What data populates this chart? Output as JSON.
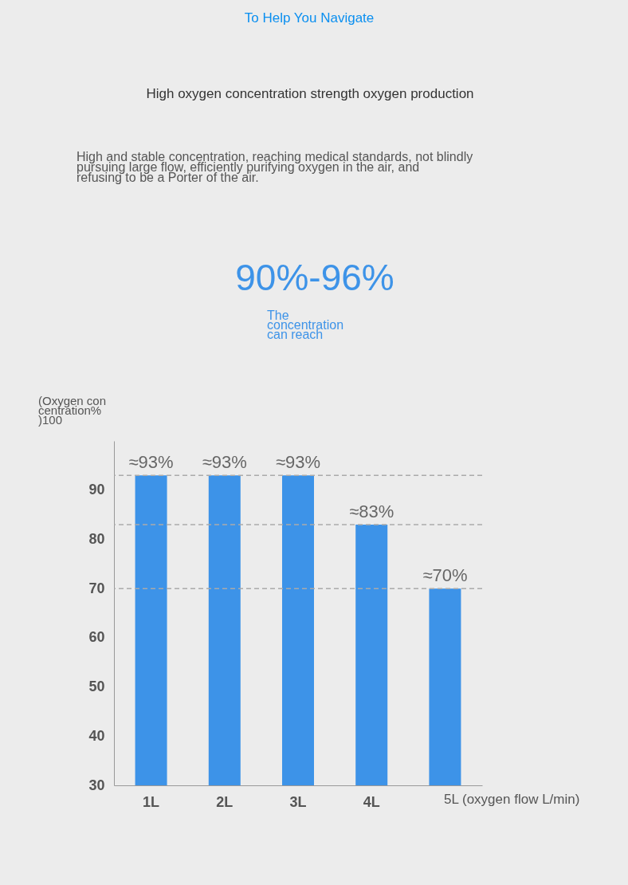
{
  "chart_data": {
    "type": "bar",
    "title": "High oxygen concentration strength oxygen production",
    "subtitle": "High and stable concentration, reaching medical standards, not blindly pursuing large flow, efficiently purifying oxygen in the air, and refusing to be a Porter of the air.",
    "annotations": [
      "To Help You Navigate",
      "90%-96%",
      "The concentration can reach"
    ],
    "ylabel": "(Oxygen concentration%)100",
    "xlabel": "5L (oxygen flow L/min)",
    "categories": [
      "1L",
      "2L",
      "3L",
      "4L",
      null
    ],
    "values": [
      93,
      93,
      93,
      83,
      70
    ],
    "color": "#3d93e8",
    "value_labels": [
      "≈93%",
      "≈93%",
      "≈93%",
      "≈83%",
      "≈70%"
    ],
    "ylim": [
      30,
      100
    ],
    "yticks": [
      30,
      40,
      50,
      60,
      70,
      80,
      90
    ],
    "ref_lines": [
      {
        "axis": "y",
        "value": 93,
        "color": "#aaaaaa",
        "line_style": "dashed"
      },
      {
        "axis": "y",
        "value": 83,
        "color": "#aaaaaa",
        "line_style": "dashed"
      },
      {
        "axis": "y",
        "value": 70,
        "color": "#aaaaaa",
        "line_style": "dashed"
      }
    ],
    "grid": false
  }
}
